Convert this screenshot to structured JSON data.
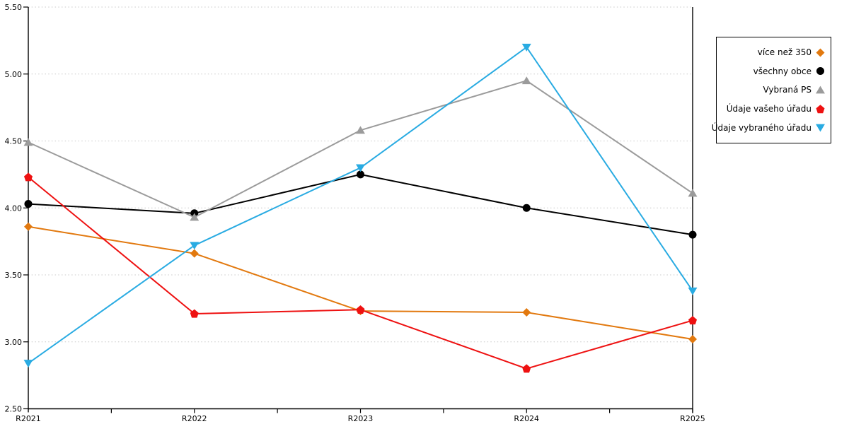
{
  "chart_data": {
    "type": "line",
    "title": "",
    "xlabel": "",
    "ylabel": "",
    "categories": [
      "R2021",
      "R2022",
      "R2023",
      "R2024",
      "R2025"
    ],
    "series": [
      {
        "name": "více než 350",
        "color": "#E2790F",
        "marker": "diamond",
        "values": [
          3.86,
          3.66,
          3.23,
          3.22,
          3.02
        ]
      },
      {
        "name": "všechny obce",
        "color": "#000000",
        "marker": "circle",
        "values": [
          4.03,
          3.96,
          4.25,
          4.0,
          3.8
        ]
      },
      {
        "name": "Vybraná PS",
        "color": "#9B9B9B",
        "marker": "triangle-up",
        "values": [
          4.49,
          3.93,
          4.58,
          4.95,
          4.11
        ]
      },
      {
        "name": "Údaje vašeho úřadu",
        "color": "#EE1111",
        "marker": "pentagon",
        "values": [
          4.23,
          3.21,
          3.24,
          2.8,
          3.16
        ]
      },
      {
        "name": "Údaje vybraného úřadu",
        "color": "#29ABE2",
        "marker": "triangle-down",
        "values": [
          2.84,
          3.72,
          4.3,
          5.2,
          3.38
        ]
      }
    ],
    "ylim": [
      2.5,
      5.5
    ],
    "y_tick_step": 0.5,
    "y_tick_labels": [
      "2.50",
      "3.00",
      "3.50",
      "4.00",
      "4.50",
      "5.00",
      "5.50"
    ],
    "grid": "horizontal-dotted",
    "legend_position": "outside-top-right",
    "colors": {
      "background": "#ffffff",
      "axis": "#000000",
      "gridline": "#c8c8c8",
      "legend_border": "#000000"
    }
  }
}
